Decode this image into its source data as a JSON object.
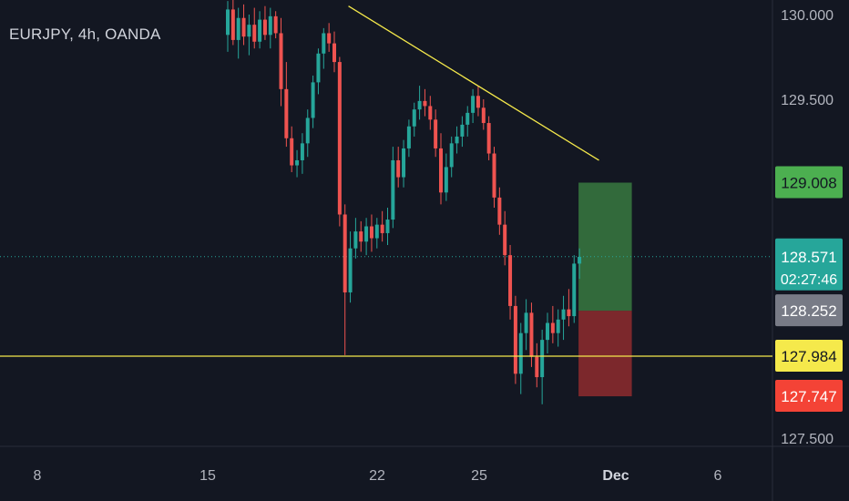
{
  "header": {
    "title": "EURJPY, 4h, OANDA"
  },
  "colors": {
    "background": "#131722",
    "up": "#26a69a",
    "down": "#ef5350",
    "trendline": "#f5e94b",
    "axis_text": "#b2b5be",
    "profit_zone": "#4caf50",
    "loss_zone": "#e53935"
  },
  "chart_data": {
    "type": "candlestick",
    "symbol": "EURJPY",
    "timeframe": "4h",
    "source": "OANDA",
    "ylim": [
      127.45,
      130.12
    ],
    "x_ticks": [
      {
        "label": "8",
        "bold": false
      },
      {
        "label": "15",
        "bold": false
      },
      {
        "label": "22",
        "bold": false
      },
      {
        "label": "25",
        "bold": false
      },
      {
        "label": "Dec",
        "bold": true
      },
      {
        "label": "6",
        "bold": false
      }
    ],
    "y_ticks": [
      "130.000",
      "129.500",
      "127.500"
    ],
    "price_labels": [
      {
        "value": "129.008",
        "price": 129.008,
        "kind": "target"
      },
      {
        "value": "128.571",
        "price": 128.571,
        "kind": "last",
        "countdown": "02:27:46"
      },
      {
        "value": "128.252",
        "price": 128.252,
        "kind": "entry"
      },
      {
        "value": "127.984",
        "price": 127.984,
        "kind": "support"
      },
      {
        "value": "127.747",
        "price": 127.747,
        "kind": "stop"
      }
    ],
    "horizontal_line": {
      "price": 127.984
    },
    "last_price_line": {
      "price": 128.571
    },
    "trendline": {
      "from": {
        "index": 23,
        "price": 130.05
      },
      "to": {
        "index": 70,
        "price": 129.14
      }
    },
    "position": {
      "entry": 128.252,
      "target": 129.008,
      "stop": 127.747,
      "from_index": 66,
      "to_index": 76
    },
    "candles": [
      [
        129.88,
        130.08,
        129.78,
        130.03
      ],
      [
        130.03,
        130.1,
        129.82,
        129.85
      ],
      [
        129.85,
        130.04,
        129.74,
        129.98
      ],
      [
        129.98,
        130.06,
        129.82,
        129.87
      ],
      [
        129.87,
        130.0,
        129.76,
        129.94
      ],
      [
        129.94,
        130.04,
        129.8,
        129.84
      ],
      [
        129.84,
        130.02,
        129.8,
        129.97
      ],
      [
        129.97,
        130.05,
        129.85,
        129.88
      ],
      [
        129.88,
        130.04,
        129.8,
        129.99
      ],
      [
        129.99,
        130.02,
        129.86,
        129.89
      ],
      [
        129.89,
        129.98,
        129.46,
        129.56
      ],
      [
        129.56,
        129.72,
        129.22,
        129.27
      ],
      [
        129.27,
        129.34,
        129.07,
        129.11
      ],
      [
        129.11,
        129.2,
        129.04,
        129.14
      ],
      [
        129.14,
        129.3,
        129.06,
        129.24
      ],
      [
        129.24,
        129.44,
        129.16,
        129.39
      ],
      [
        129.39,
        129.64,
        129.33,
        129.6
      ],
      [
        129.6,
        129.8,
        129.53,
        129.77
      ],
      [
        129.77,
        129.92,
        129.68,
        129.89
      ],
      [
        129.89,
        129.95,
        129.78,
        129.83
      ],
      [
        129.83,
        129.9,
        129.66,
        129.72
      ],
      [
        129.72,
        129.75,
        128.75,
        128.82
      ],
      [
        128.82,
        128.88,
        127.99,
        128.36
      ],
      [
        128.36,
        128.72,
        128.3,
        128.62
      ],
      [
        128.62,
        128.8,
        128.56,
        128.72
      ],
      [
        128.72,
        128.78,
        128.6,
        128.66
      ],
      [
        128.66,
        128.8,
        128.58,
        128.75
      ],
      [
        128.75,
        128.82,
        128.6,
        128.68
      ],
      [
        128.68,
        128.8,
        128.62,
        128.76
      ],
      [
        128.76,
        128.84,
        128.66,
        128.71
      ],
      [
        128.71,
        128.86,
        128.64,
        128.79
      ],
      [
        128.79,
        129.22,
        128.74,
        129.14
      ],
      [
        129.14,
        129.22,
        128.98,
        129.04
      ],
      [
        129.04,
        129.26,
        128.98,
        129.21
      ],
      [
        129.21,
        129.38,
        129.16,
        129.34
      ],
      [
        129.34,
        129.48,
        129.28,
        129.44
      ],
      [
        129.44,
        129.58,
        129.38,
        129.49
      ],
      [
        129.49,
        129.56,
        129.4,
        129.46
      ],
      [
        129.46,
        129.52,
        129.32,
        129.38
      ],
      [
        129.38,
        129.44,
        129.16,
        129.21
      ],
      [
        129.21,
        129.3,
        128.88,
        128.95
      ],
      [
        128.95,
        129.18,
        128.9,
        129.1
      ],
      [
        129.1,
        129.28,
        129.04,
        129.24
      ],
      [
        129.24,
        129.34,
        129.18,
        129.28
      ],
      [
        129.28,
        129.4,
        129.22,
        129.35
      ],
      [
        129.35,
        129.46,
        129.28,
        129.42
      ],
      [
        129.42,
        129.56,
        129.36,
        129.52
      ],
      [
        129.52,
        129.58,
        129.4,
        129.45
      ],
      [
        129.45,
        129.5,
        129.32,
        129.36
      ],
      [
        129.36,
        129.4,
        129.14,
        129.18
      ],
      [
        129.18,
        129.22,
        128.86,
        128.92
      ],
      [
        128.92,
        128.98,
        128.7,
        128.76
      ],
      [
        128.76,
        128.84,
        128.52,
        128.58
      ],
      [
        128.58,
        128.64,
        128.2,
        128.28
      ],
      [
        128.28,
        128.34,
        127.82,
        127.88
      ],
      [
        127.88,
        128.18,
        127.76,
        128.12
      ],
      [
        128.12,
        128.32,
        128.02,
        128.24
      ],
      [
        128.24,
        128.3,
        127.92,
        127.98
      ],
      [
        127.98,
        128.06,
        127.8,
        127.86
      ],
      [
        127.86,
        128.14,
        127.7,
        128.08
      ],
      [
        128.08,
        128.24,
        128.0,
        128.18
      ],
      [
        128.18,
        128.28,
        128.06,
        128.12
      ],
      [
        128.12,
        128.26,
        128.04,
        128.2
      ],
      [
        128.2,
        128.34,
        128.08,
        128.26
      ],
      [
        128.26,
        128.38,
        128.16,
        128.22
      ],
      [
        128.22,
        128.58,
        128.18,
        128.53
      ],
      [
        128.53,
        128.62,
        128.44,
        128.57
      ]
    ]
  }
}
